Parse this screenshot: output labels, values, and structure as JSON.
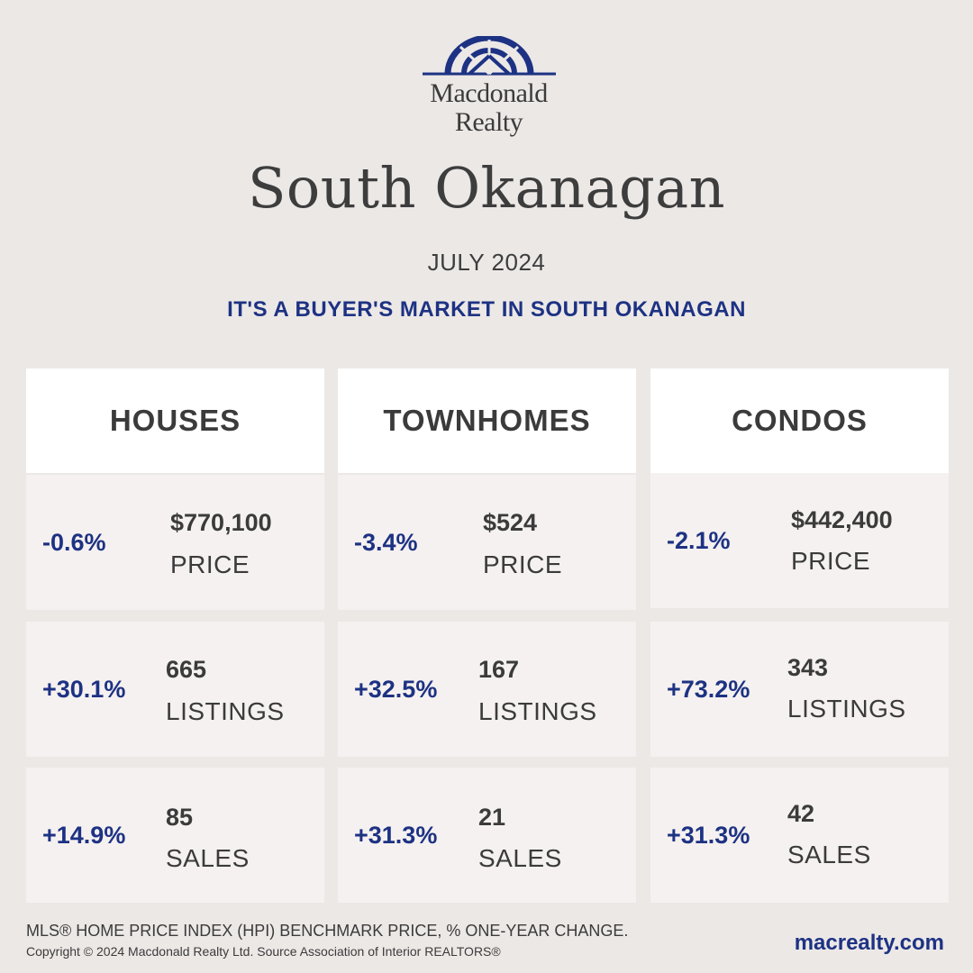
{
  "brand": {
    "line1": "Macdonald",
    "line2": "Realty",
    "color": "#1d3283"
  },
  "title": "South Okanagan",
  "month": "JULY 2024",
  "headline": "IT'S A BUYER'S MARKET IN SOUTH OKANAGAN",
  "columns": [
    {
      "heading": "HOUSES",
      "rows": [
        {
          "change": "-0.6%",
          "value": "$770,100",
          "label": "PRICE"
        },
        {
          "change": "+30.1%",
          "value": "665",
          "label": "LISTINGS"
        },
        {
          "change": "+14.9%",
          "value": "85",
          "label": "SALES"
        }
      ]
    },
    {
      "heading": "TOWNHOMES",
      "rows": [
        {
          "change": "-3.4%",
          "value": "$524",
          "label": "PRICE"
        },
        {
          "change": "+32.5%",
          "value": "167",
          "label": "LISTINGS"
        },
        {
          "change": "+31.3%",
          "value": "21",
          "label": "SALES"
        }
      ]
    },
    {
      "heading": "CONDOS",
      "rows": [
        {
          "change": "-2.1%",
          "value": "$442,400",
          "label": "PRICE"
        },
        {
          "change": "+73.2%",
          "value": "343",
          "label": "LISTINGS"
        },
        {
          "change": "+31.3%",
          "value": "42",
          "label": "SALES"
        }
      ]
    }
  ],
  "footer": {
    "note": "MLS® HOME PRICE INDEX (HPI) BENCHMARK PRICE, % ONE-YEAR CHANGE.",
    "copyright": "Copyright © 2024 Macdonald Realty Ltd. Source Association of Interior REALTORS®",
    "url": "macrealty.com"
  }
}
